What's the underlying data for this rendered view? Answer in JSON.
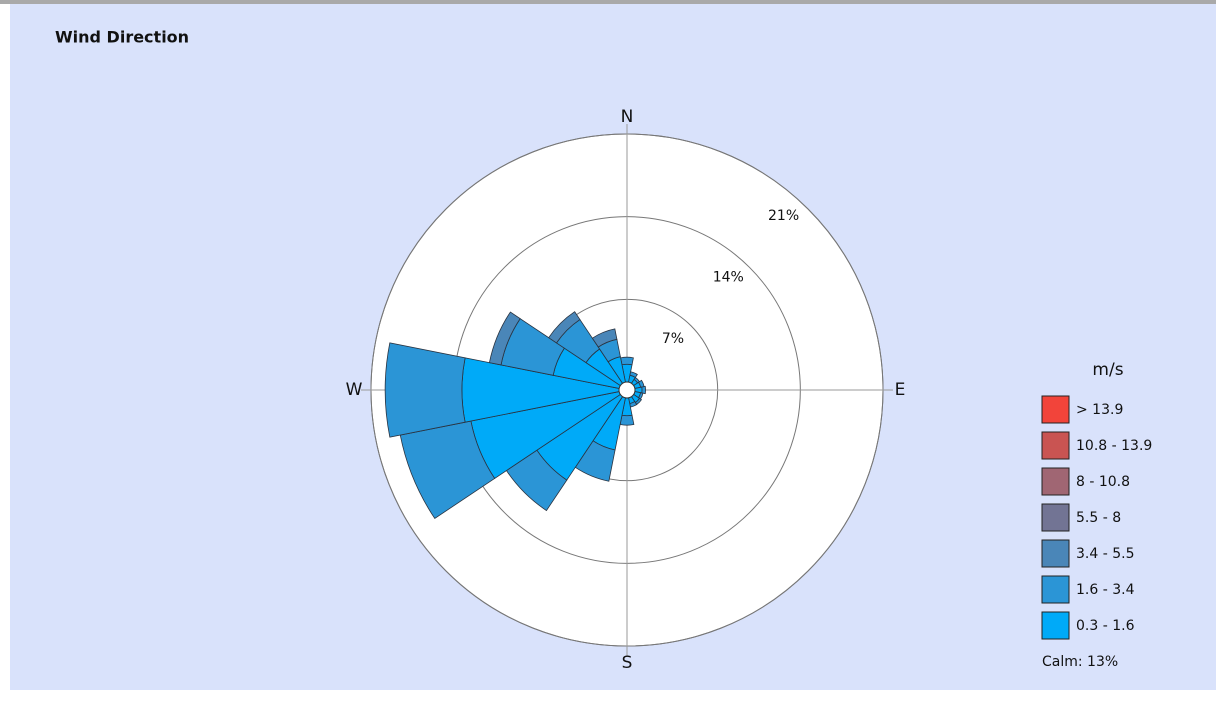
{
  "chart_data": {
    "type": "windrose",
    "title": "Wind Direction",
    "categories": [
      "N",
      null,
      null,
      null,
      "E",
      null,
      null,
      null,
      "S",
      null,
      null,
      null,
      "W",
      null,
      null,
      null
    ],
    "rlim": [
      0,
      21
    ],
    "rticks": [
      {
        "value": 7,
        "label": "7%"
      },
      {
        "value": 14,
        "label": "14%"
      },
      {
        "value": 21,
        "label": "21%"
      }
    ],
    "legend_title": "m/s",
    "calm_label": "Calm: 13%",
    "series": [
      {
        "name": "> 13.9",
        "color": "#f2443a",
        "values": [
          0,
          0,
          0,
          0,
          0,
          0,
          0,
          0,
          0,
          0,
          0,
          0,
          0,
          0,
          0,
          0
        ]
      },
      {
        "name": "10.8 - 13.9",
        "color": "#c95452",
        "values": [
          0,
          0,
          0,
          0,
          0,
          0,
          0,
          0,
          0,
          0,
          0,
          0,
          0,
          0,
          0,
          0
        ]
      },
      {
        "name": "8 - 10.8",
        "color": "#a06673",
        "values": [
          0,
          0,
          0,
          0,
          0,
          0,
          0,
          0,
          0,
          0,
          0,
          0,
          0,
          0,
          0,
          0
        ]
      },
      {
        "name": "5.5 - 8",
        "color": "#727494",
        "values": [
          0,
          0,
          0,
          0,
          0,
          0,
          0,
          0,
          0,
          0,
          0,
          0,
          0,
          0,
          0,
          0
        ]
      },
      {
        "name": "3.4 - 5.5",
        "color": "#4a86b8",
        "values": [
          0,
          0,
          0,
          0,
          0,
          0,
          0,
          0,
          0,
          0,
          0,
          0,
          0,
          1.0,
          0.8,
          0.9
        ]
      },
      {
        "name": "1.6 - 3.4",
        "color": "#2b95d6",
        "values": [
          0.6,
          0.3,
          0.2,
          0.3,
          0.3,
          0.2,
          0.2,
          0.3,
          0.8,
          2.7,
          3.1,
          6.1,
          6.5,
          4.5,
          3.0,
          1.5
        ]
      },
      {
        "name": "0.3 - 1.6",
        "color": "#00aaf8",
        "values": [
          1.5,
          0.6,
          0.4,
          0.5,
          0.6,
          0.5,
          0.6,
          0.5,
          1.5,
          4.5,
          8.5,
          12.8,
          13.3,
          5.7,
          3.5,
          2.2
        ]
      }
    ]
  }
}
